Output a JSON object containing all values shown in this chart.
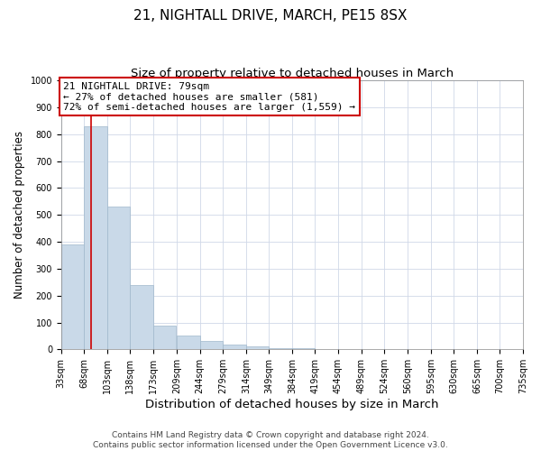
{
  "title": "21, NIGHTALL DRIVE, MARCH, PE15 8SX",
  "subtitle": "Size of property relative to detached houses in March",
  "xlabel": "Distribution of detached houses by size in March",
  "ylabel": "Number of detached properties",
  "footer_line1": "Contains HM Land Registry data © Crown copyright and database right 2024.",
  "footer_line2": "Contains public sector information licensed under the Open Government Licence v3.0.",
  "annotation_line1": "21 NIGHTALL DRIVE: 79sqm",
  "annotation_line2": "← 27% of detached houses are smaller (581)",
  "annotation_line3": "72% of semi-detached houses are larger (1,559) →",
  "bar_edges": [
    33,
    68,
    103,
    138,
    173,
    209,
    244,
    279,
    314,
    349,
    384,
    419,
    454,
    489,
    524,
    560,
    595,
    630,
    665,
    700,
    735
  ],
  "bar_heights": [
    390,
    830,
    530,
    240,
    90,
    50,
    30,
    18,
    10,
    5,
    3,
    2,
    1,
    1,
    0,
    0,
    0,
    0,
    0,
    0
  ],
  "bar_color": "#c9d9e8",
  "bar_edgecolor": "#a0b8cc",
  "redline_x": 79,
  "ylim": [
    0,
    1000
  ],
  "xlim": [
    33,
    735
  ],
  "yticks": [
    0,
    100,
    200,
    300,
    400,
    500,
    600,
    700,
    800,
    900,
    1000
  ],
  "title_fontsize": 11,
  "subtitle_fontsize": 9.5,
  "xlabel_fontsize": 9.5,
  "ylabel_fontsize": 8.5,
  "tick_fontsize": 7,
  "annotation_fontsize": 8,
  "footer_fontsize": 6.5,
  "background_color": "#ffffff",
  "grid_color": "#d0d8e8",
  "annotation_box_edgecolor": "#cc0000",
  "redline_color": "#cc0000"
}
